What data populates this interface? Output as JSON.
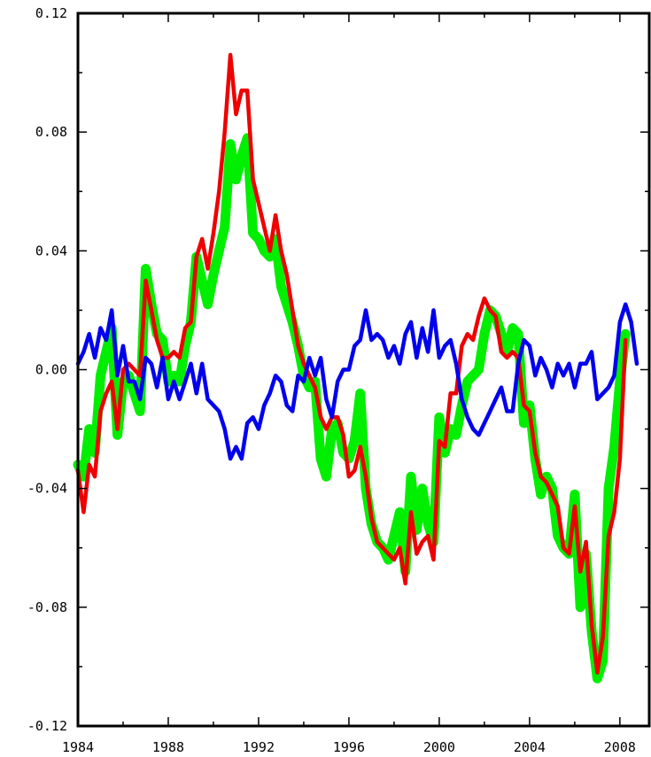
{
  "chart_data": {
    "type": "line",
    "title": "",
    "xlabel": "",
    "ylabel": "",
    "xlim": [
      1984,
      2009.3
    ],
    "ylim": [
      -0.12,
      0.12
    ],
    "x_ticks": [
      1984,
      1988,
      1992,
      1996,
      2000,
      2004,
      2008
    ],
    "x_tick_labels": [
      "1984",
      "1988",
      "1992",
      "1996",
      "2000",
      "2004",
      "2008"
    ],
    "y_ticks": [
      0.12,
      0.08,
      0.04,
      0.0,
      -0.04,
      -0.08,
      -0.12
    ],
    "y_tick_labels": [
      "0.12",
      "0.08",
      "0.04",
      "0.00",
      "-0.04",
      "-0.08",
      "-0.12"
    ],
    "grid": false,
    "legend": "none",
    "series": [
      {
        "color": "#00ee00",
        "values": [
          [
            1984.0,
            -0.032
          ],
          [
            1984.25,
            -0.036
          ],
          [
            1984.5,
            -0.02
          ],
          [
            1984.75,
            -0.028
          ],
          [
            1985.0,
            -0.002
          ],
          [
            1985.25,
            0.006
          ],
          [
            1985.5,
            0.014
          ],
          [
            1985.75,
            -0.022
          ],
          [
            1986.0,
            -0.004
          ],
          [
            1986.25,
            -0.002
          ],
          [
            1986.5,
            -0.008
          ],
          [
            1986.75,
            -0.014
          ],
          [
            1987.0,
            0.034
          ],
          [
            1987.25,
            0.022
          ],
          [
            1987.5,
            0.012
          ],
          [
            1987.75,
            0.01
          ],
          [
            1988.0,
            -0.004
          ],
          [
            1988.25,
            -0.002
          ],
          [
            1988.5,
            -0.004
          ],
          [
            1988.75,
            0.008
          ],
          [
            1989.0,
            0.016
          ],
          [
            1989.25,
            0.038
          ],
          [
            1989.5,
            0.03
          ],
          [
            1989.75,
            0.022
          ],
          [
            1990.0,
            0.032
          ],
          [
            1990.25,
            0.04
          ],
          [
            1990.5,
            0.048
          ],
          [
            1990.75,
            0.076
          ],
          [
            1991.0,
            0.064
          ],
          [
            1991.25,
            0.072
          ],
          [
            1991.5,
            0.078
          ],
          [
            1991.75,
            0.046
          ],
          [
            1992.0,
            0.044
          ],
          [
            1992.25,
            0.04
          ],
          [
            1992.5,
            0.038
          ],
          [
            1992.75,
            0.044
          ],
          [
            1993.0,
            0.028
          ],
          [
            1993.25,
            0.022
          ],
          [
            1993.5,
            0.016
          ],
          [
            1993.75,
            0.008
          ],
          [
            1994.0,
            -0.002
          ],
          [
            1994.25,
            -0.006
          ],
          [
            1994.5,
            -0.004
          ],
          [
            1994.75,
            -0.03
          ],
          [
            1995.0,
            -0.036
          ],
          [
            1995.25,
            -0.02
          ],
          [
            1995.5,
            -0.018
          ],
          [
            1995.75,
            -0.028
          ],
          [
            1996.0,
            -0.03
          ],
          [
            1996.25,
            -0.024
          ],
          [
            1996.5,
            -0.008
          ],
          [
            1996.75,
            -0.04
          ],
          [
            1997.0,
            -0.052
          ],
          [
            1997.25,
            -0.058
          ],
          [
            1997.5,
            -0.06
          ],
          [
            1997.75,
            -0.064
          ],
          [
            1998.0,
            -0.056
          ],
          [
            1998.25,
            -0.048
          ],
          [
            1998.5,
            -0.068
          ],
          [
            1998.75,
            -0.036
          ],
          [
            1999.0,
            -0.054
          ],
          [
            1999.25,
            -0.04
          ],
          [
            1999.5,
            -0.052
          ],
          [
            1999.75,
            -0.058
          ],
          [
            2000.0,
            -0.016
          ],
          [
            2000.25,
            -0.028
          ],
          [
            2000.5,
            -0.02
          ],
          [
            2000.75,
            -0.022
          ],
          [
            2001.0,
            -0.012
          ],
          [
            2001.25,
            -0.004
          ],
          [
            2001.5,
            -0.002
          ],
          [
            2001.75,
            0.0
          ],
          [
            2002.0,
            0.012
          ],
          [
            2002.25,
            0.02
          ],
          [
            2002.5,
            0.018
          ],
          [
            2002.75,
            0.012
          ],
          [
            2003.0,
            0.006
          ],
          [
            2003.25,
            0.014
          ],
          [
            2003.5,
            0.012
          ],
          [
            2003.75,
            -0.018
          ],
          [
            2004.0,
            -0.012
          ],
          [
            2004.25,
            -0.03
          ],
          [
            2004.5,
            -0.042
          ],
          [
            2004.75,
            -0.036
          ],
          [
            2005.0,
            -0.04
          ],
          [
            2005.25,
            -0.056
          ],
          [
            2005.5,
            -0.06
          ],
          [
            2005.75,
            -0.062
          ],
          [
            2006.0,
            -0.042
          ],
          [
            2006.25,
            -0.08
          ],
          [
            2006.5,
            -0.062
          ],
          [
            2006.75,
            -0.088
          ],
          [
            2007.0,
            -0.104
          ],
          [
            2007.25,
            -0.098
          ],
          [
            2007.5,
            -0.04
          ],
          [
            2007.75,
            -0.026
          ],
          [
            2008.0,
            -0.004
          ],
          [
            2008.25,
            0.012
          ]
        ]
      },
      {
        "color": "#ee0000",
        "values": [
          [
            1984.0,
            -0.034
          ],
          [
            1984.25,
            -0.048
          ],
          [
            1984.5,
            -0.032
          ],
          [
            1984.75,
            -0.036
          ],
          [
            1985.0,
            -0.014
          ],
          [
            1985.25,
            -0.008
          ],
          [
            1985.5,
            -0.004
          ],
          [
            1985.75,
            -0.02
          ],
          [
            1986.0,
            0.0
          ],
          [
            1986.25,
            0.002
          ],
          [
            1986.5,
            0.0
          ],
          [
            1986.75,
            -0.002
          ],
          [
            1987.0,
            0.03
          ],
          [
            1987.25,
            0.02
          ],
          [
            1987.5,
            0.01
          ],
          [
            1987.75,
            0.004
          ],
          [
            1988.0,
            0.004
          ],
          [
            1988.25,
            0.006
          ],
          [
            1988.5,
            0.004
          ],
          [
            1988.75,
            0.014
          ],
          [
            1989.0,
            0.016
          ],
          [
            1989.25,
            0.038
          ],
          [
            1989.5,
            0.044
          ],
          [
            1989.75,
            0.034
          ],
          [
            1990.0,
            0.046
          ],
          [
            1990.25,
            0.06
          ],
          [
            1990.5,
            0.08
          ],
          [
            1990.75,
            0.106
          ],
          [
            1991.0,
            0.086
          ],
          [
            1991.25,
            0.094
          ],
          [
            1991.5,
            0.094
          ],
          [
            1991.75,
            0.064
          ],
          [
            1992.0,
            0.056
          ],
          [
            1992.25,
            0.048
          ],
          [
            1992.5,
            0.04
          ],
          [
            1992.75,
            0.052
          ],
          [
            1993.0,
            0.04
          ],
          [
            1993.25,
            0.032
          ],
          [
            1993.5,
            0.02
          ],
          [
            1993.75,
            0.008
          ],
          [
            1994.0,
            0.002
          ],
          [
            1994.25,
            -0.002
          ],
          [
            1994.5,
            -0.006
          ],
          [
            1994.75,
            -0.016
          ],
          [
            1995.0,
            -0.02
          ],
          [
            1995.25,
            -0.016
          ],
          [
            1995.5,
            -0.016
          ],
          [
            1995.75,
            -0.022
          ],
          [
            1996.0,
            -0.036
          ],
          [
            1996.25,
            -0.034
          ],
          [
            1996.5,
            -0.026
          ],
          [
            1996.75,
            -0.036
          ],
          [
            1997.0,
            -0.05
          ],
          [
            1997.25,
            -0.058
          ],
          [
            1997.5,
            -0.06
          ],
          [
            1997.75,
            -0.062
          ],
          [
            1998.0,
            -0.064
          ],
          [
            1998.25,
            -0.06
          ],
          [
            1998.5,
            -0.072
          ],
          [
            1998.75,
            -0.048
          ],
          [
            1999.0,
            -0.062
          ],
          [
            1999.25,
            -0.058
          ],
          [
            1999.5,
            -0.056
          ],
          [
            1999.75,
            -0.064
          ],
          [
            2000.0,
            -0.024
          ],
          [
            2000.25,
            -0.026
          ],
          [
            2000.5,
            -0.008
          ],
          [
            2000.75,
            -0.008
          ],
          [
            2001.0,
            0.008
          ],
          [
            2001.25,
            0.012
          ],
          [
            2001.5,
            0.01
          ],
          [
            2001.75,
            0.018
          ],
          [
            2002.0,
            0.024
          ],
          [
            2002.25,
            0.02
          ],
          [
            2002.5,
            0.018
          ],
          [
            2002.75,
            0.006
          ],
          [
            2003.0,
            0.004
          ],
          [
            2003.25,
            0.006
          ],
          [
            2003.5,
            0.004
          ],
          [
            2003.75,
            -0.012
          ],
          [
            2004.0,
            -0.014
          ],
          [
            2004.25,
            -0.028
          ],
          [
            2004.5,
            -0.036
          ],
          [
            2004.75,
            -0.038
          ],
          [
            2005.0,
            -0.042
          ],
          [
            2005.25,
            -0.046
          ],
          [
            2005.5,
            -0.06
          ],
          [
            2005.75,
            -0.062
          ],
          [
            2006.0,
            -0.046
          ],
          [
            2006.25,
            -0.068
          ],
          [
            2006.5,
            -0.058
          ],
          [
            2006.75,
            -0.086
          ],
          [
            2007.0,
            -0.102
          ],
          [
            2007.25,
            -0.09
          ],
          [
            2007.5,
            -0.056
          ],
          [
            2007.75,
            -0.048
          ],
          [
            2008.0,
            -0.03
          ],
          [
            2008.25,
            0.01
          ]
        ]
      },
      {
        "color": "#0000ee",
        "values": [
          [
            1984.0,
            0.002
          ],
          [
            1984.25,
            0.006
          ],
          [
            1984.5,
            0.012
          ],
          [
            1984.75,
            0.004
          ],
          [
            1985.0,
            0.014
          ],
          [
            1985.25,
            0.01
          ],
          [
            1985.5,
            0.02
          ],
          [
            1985.75,
            -0.002
          ],
          [
            1986.0,
            0.008
          ],
          [
            1986.25,
            -0.004
          ],
          [
            1986.5,
            -0.004
          ],
          [
            1986.75,
            -0.01
          ],
          [
            1987.0,
            0.004
          ],
          [
            1987.25,
            0.002
          ],
          [
            1987.5,
            -0.006
          ],
          [
            1987.75,
            0.004
          ],
          [
            1988.0,
            -0.01
          ],
          [
            1988.25,
            -0.004
          ],
          [
            1988.5,
            -0.01
          ],
          [
            1988.75,
            -0.004
          ],
          [
            1989.0,
            0.002
          ],
          [
            1989.25,
            -0.008
          ],
          [
            1989.5,
            0.002
          ],
          [
            1989.75,
            -0.01
          ],
          [
            1990.0,
            -0.012
          ],
          [
            1990.25,
            -0.014
          ],
          [
            1990.5,
            -0.02
          ],
          [
            1990.75,
            -0.03
          ],
          [
            1991.0,
            -0.026
          ],
          [
            1991.25,
            -0.03
          ],
          [
            1991.5,
            -0.018
          ],
          [
            1991.75,
            -0.016
          ],
          [
            1992.0,
            -0.02
          ],
          [
            1992.25,
            -0.012
          ],
          [
            1992.5,
            -0.008
          ],
          [
            1992.75,
            -0.002
          ],
          [
            1993.0,
            -0.004
          ],
          [
            1993.25,
            -0.012
          ],
          [
            1993.5,
            -0.014
          ],
          [
            1993.75,
            -0.002
          ],
          [
            1994.0,
            -0.004
          ],
          [
            1994.25,
            0.004
          ],
          [
            1994.5,
            -0.002
          ],
          [
            1994.75,
            0.004
          ],
          [
            1995.0,
            -0.01
          ],
          [
            1995.25,
            -0.016
          ],
          [
            1995.5,
            -0.004
          ],
          [
            1995.75,
            0.0
          ],
          [
            1996.0,
            0.0
          ],
          [
            1996.25,
            0.008
          ],
          [
            1996.5,
            0.01
          ],
          [
            1996.75,
            0.02
          ],
          [
            1997.0,
            0.01
          ],
          [
            1997.25,
            0.012
          ],
          [
            1997.5,
            0.01
          ],
          [
            1997.75,
            0.004
          ],
          [
            1998.0,
            0.008
          ],
          [
            1998.25,
            0.002
          ],
          [
            1998.5,
            0.012
          ],
          [
            1998.75,
            0.016
          ],
          [
            1999.0,
            0.004
          ],
          [
            1999.25,
            0.014
          ],
          [
            1999.5,
            0.006
          ],
          [
            1999.75,
            0.02
          ],
          [
            2000.0,
            0.004
          ],
          [
            2000.25,
            0.008
          ],
          [
            2000.5,
            0.01
          ],
          [
            2000.75,
            0.002
          ],
          [
            2001.0,
            -0.01
          ],
          [
            2001.25,
            -0.016
          ],
          [
            2001.5,
            -0.02
          ],
          [
            2001.75,
            -0.022
          ],
          [
            2002.0,
            -0.018
          ],
          [
            2002.25,
            -0.014
          ],
          [
            2002.5,
            -0.01
          ],
          [
            2002.75,
            -0.006
          ],
          [
            2003.0,
            -0.014
          ],
          [
            2003.25,
            -0.014
          ],
          [
            2003.5,
            0.002
          ],
          [
            2003.75,
            0.01
          ],
          [
            2004.0,
            0.008
          ],
          [
            2004.25,
            -0.002
          ],
          [
            2004.5,
            0.004
          ],
          [
            2004.75,
            0.0
          ],
          [
            2005.0,
            -0.006
          ],
          [
            2005.25,
            0.002
          ],
          [
            2005.5,
            -0.002
          ],
          [
            2005.75,
            0.002
          ],
          [
            2006.0,
            -0.006
          ],
          [
            2006.25,
            0.002
          ],
          [
            2006.5,
            0.002
          ],
          [
            2006.75,
            0.006
          ],
          [
            2007.0,
            -0.01
          ],
          [
            2007.25,
            -0.008
          ],
          [
            2007.5,
            -0.006
          ],
          [
            2007.75,
            -0.002
          ],
          [
            2008.0,
            0.016
          ],
          [
            2008.25,
            0.022
          ],
          [
            2008.5,
            0.016
          ],
          [
            2008.75,
            0.002
          ]
        ]
      }
    ]
  }
}
